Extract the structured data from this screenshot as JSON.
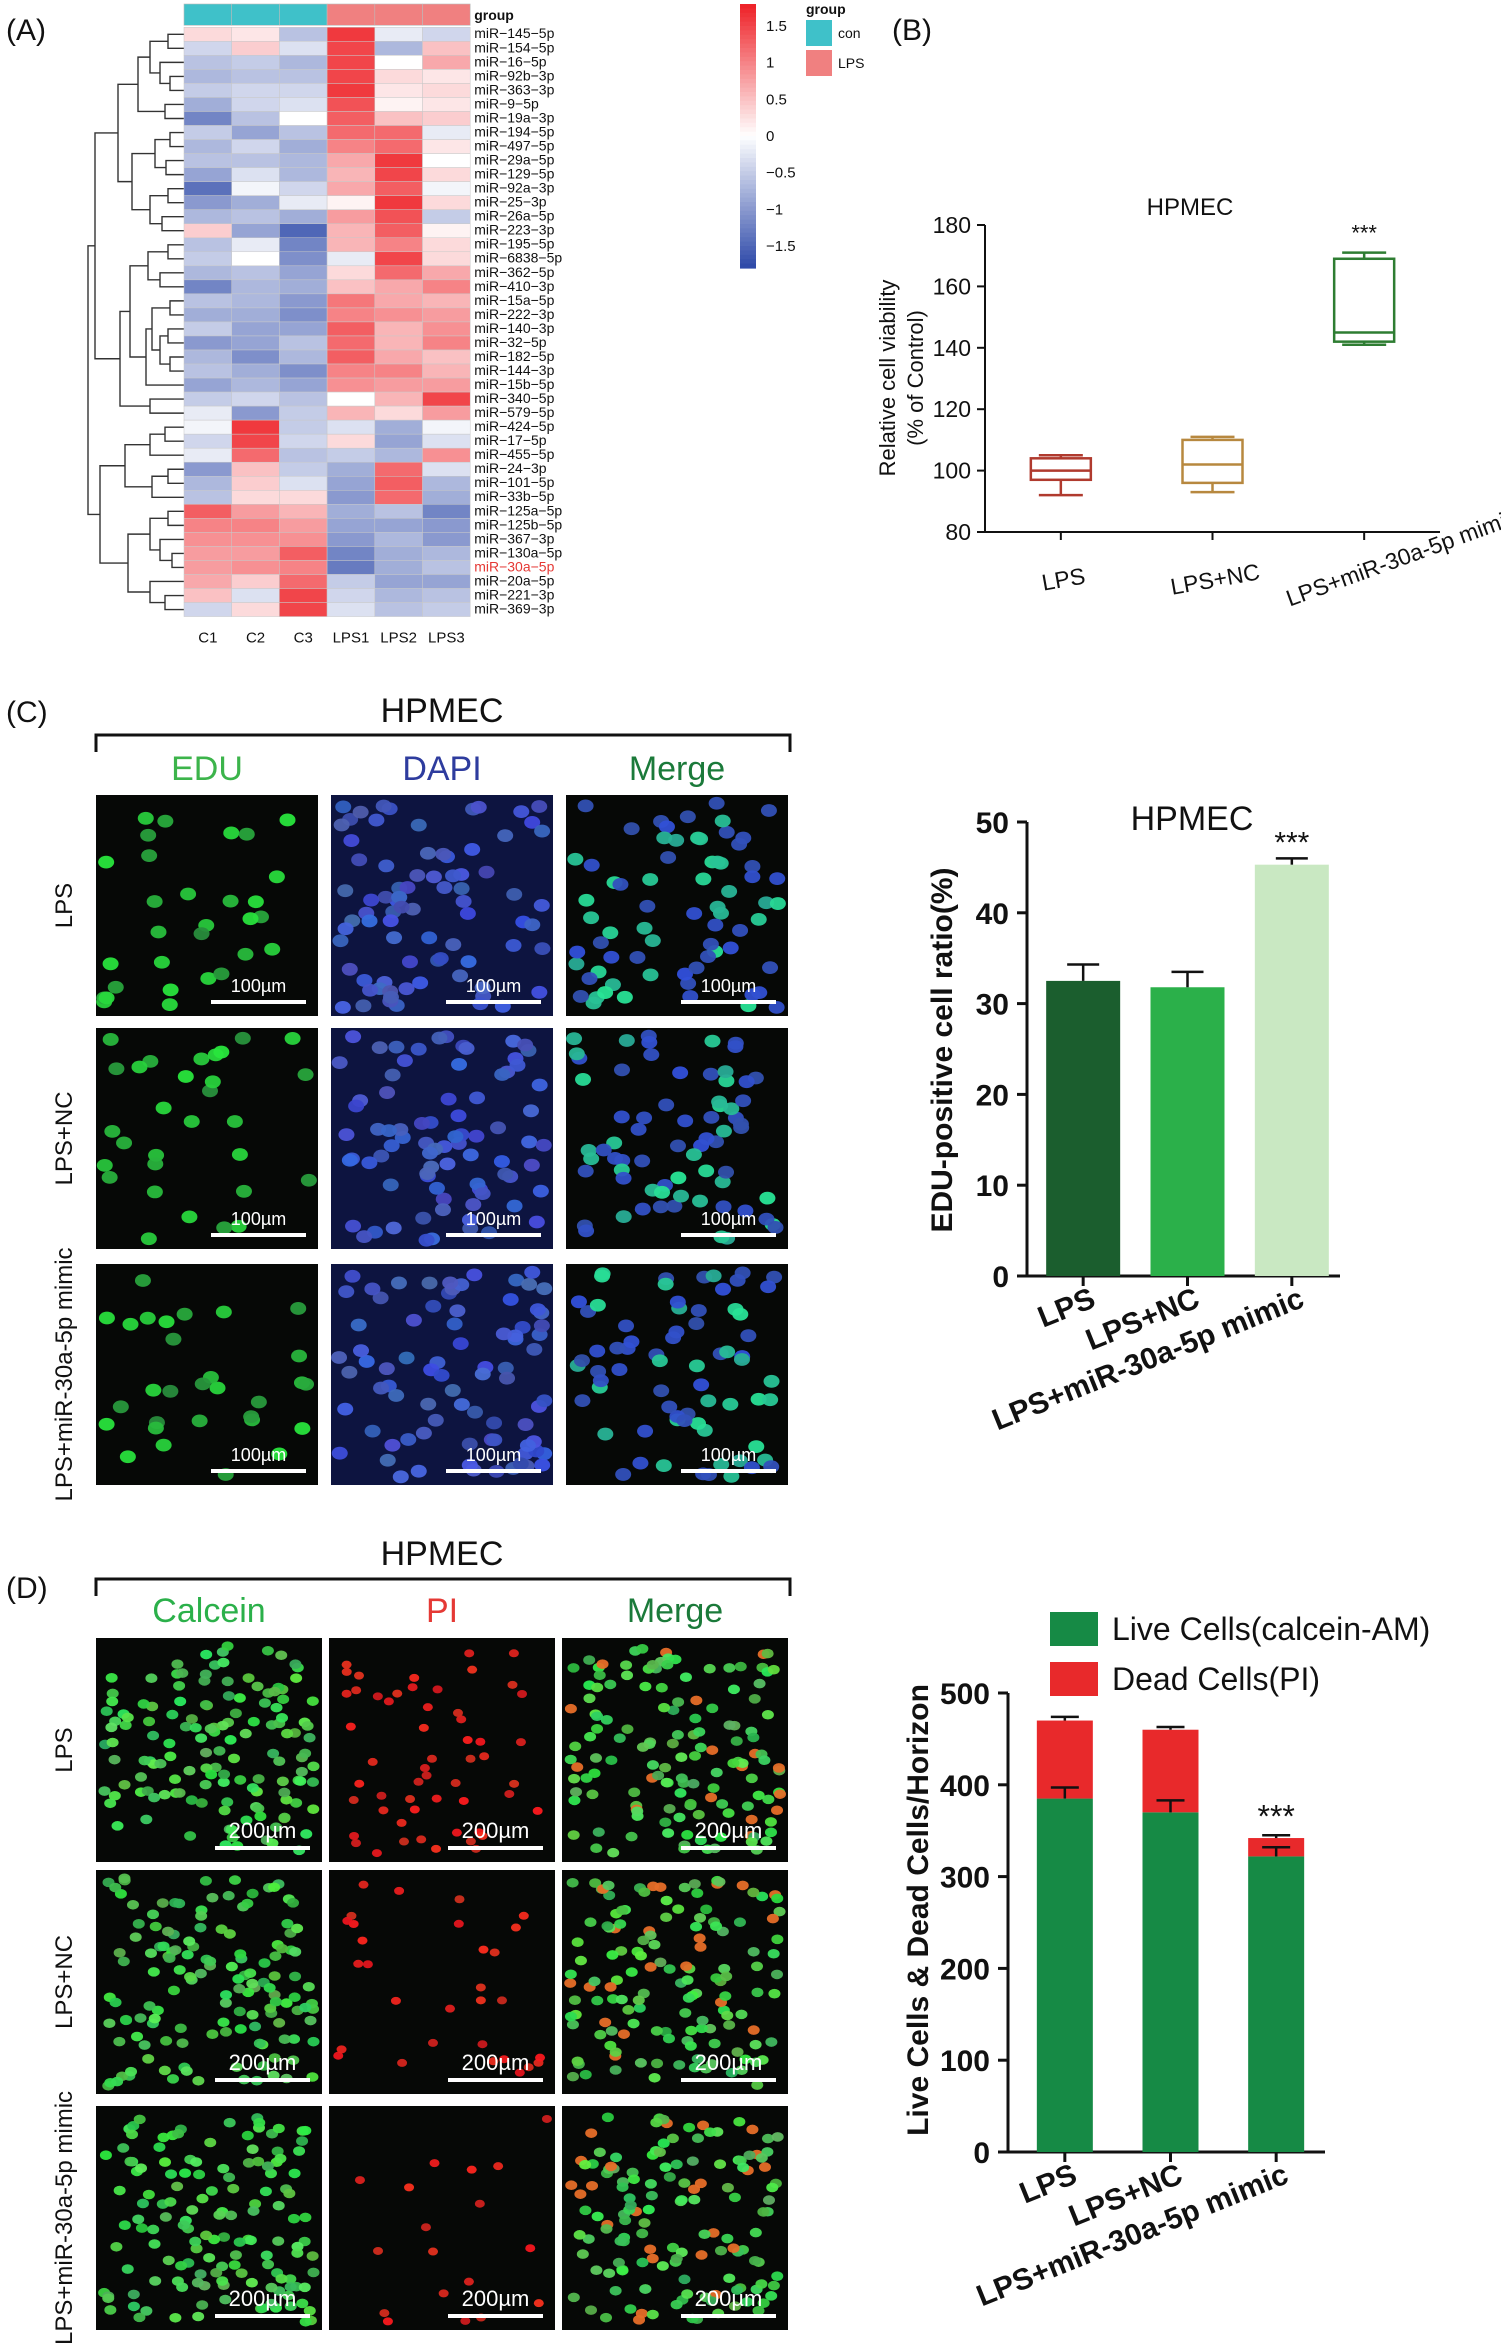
{
  "panels": {
    "A": {
      "letter": "(A)",
      "heatmap": {
        "columns": [
          "C1",
          "C2",
          "C3",
          "LPS1",
          "LPS2",
          "LPS3"
        ],
        "groups": [
          "con",
          "con",
          "con",
          "LPS",
          "LPS",
          "LPS"
        ],
        "legend_title": "group",
        "legend_items": [
          {
            "label": "con",
            "color": "#3fc1c9"
          },
          {
            "label": "LPS",
            "color": "#f08080"
          }
        ],
        "scale_ticks": [
          "1.5",
          "1",
          "0.5",
          "0",
          "−0.5",
          "−1",
          "−1.5"
        ],
        "scale_range": [
          -1.8,
          1.8
        ],
        "highlight_row": "miR−30a−5p",
        "highlight_color": "#e53935",
        "rows": [
          {
            "label": "miR−145−5p",
            "values": [
              0.3,
              0.2,
              -0.6,
              1.6,
              -0.2,
              -0.4
            ]
          },
          {
            "label": "miR−154−5p",
            "values": [
              -0.4,
              0.4,
              -0.3,
              1.5,
              -0.7,
              0.5
            ]
          },
          {
            "label": "miR−16−5p",
            "values": [
              -0.6,
              -0.5,
              -0.7,
              1.5,
              0.0,
              0.7
            ]
          },
          {
            "label": "miR−92b−3p",
            "values": [
              -0.7,
              -0.6,
              -0.6,
              1.5,
              0.3,
              0.2
            ]
          },
          {
            "label": "miR−363−3p",
            "values": [
              -0.5,
              -0.4,
              -0.4,
              1.6,
              0.2,
              0.3
            ]
          },
          {
            "label": "miR−9−5p",
            "values": [
              -0.8,
              -0.4,
              -0.3,
              1.4,
              0.1,
              0.2
            ]
          },
          {
            "label": "miR−19a−3p",
            "values": [
              -1.2,
              -0.6,
              0.0,
              1.3,
              0.5,
              0.4
            ]
          },
          {
            "label": "miR−194−5p",
            "values": [
              -0.5,
              -0.9,
              -0.6,
              1.2,
              1.2,
              -0.2
            ]
          },
          {
            "label": "miR−497−5p",
            "values": [
              -0.7,
              -0.4,
              -0.8,
              1.0,
              1.2,
              0.2
            ]
          },
          {
            "label": "miR−29a−5p",
            "values": [
              -0.6,
              -0.6,
              -0.7,
              0.7,
              1.6,
              0.0
            ]
          },
          {
            "label": "miR−129−5p",
            "values": [
              -0.9,
              -0.3,
              -0.7,
              0.6,
              1.5,
              0.3
            ]
          },
          {
            "label": "miR−92a−3p",
            "values": [
              -1.4,
              -0.1,
              -0.4,
              0.7,
              1.3,
              -0.1
            ]
          },
          {
            "label": "miR−25−3p",
            "values": [
              -1.0,
              -0.8,
              -0.2,
              0.1,
              1.6,
              0.3
            ]
          },
          {
            "label": "miR−26a−5p",
            "values": [
              -0.7,
              -0.6,
              -0.8,
              0.8,
              1.4,
              -0.5
            ]
          },
          {
            "label": "miR−223−3p",
            "values": [
              0.4,
              -0.9,
              -1.5,
              0.6,
              1.3,
              0.1
            ]
          },
          {
            "label": "miR−195−5p",
            "values": [
              -0.6,
              -0.2,
              -1.2,
              0.6,
              1.0,
              0.3
            ]
          },
          {
            "label": "miR−6838−5p",
            "values": [
              -0.5,
              0.0,
              -1.1,
              -0.2,
              1.5,
              0.3
            ]
          },
          {
            "label": "miR−362−5p",
            "values": [
              -0.7,
              -0.6,
              -0.9,
              0.3,
              1.2,
              0.7
            ]
          },
          {
            "label": "miR−410−3p",
            "values": [
              -1.2,
              -0.7,
              -0.8,
              0.5,
              0.7,
              1.0
            ]
          },
          {
            "label": "miR−15a−5p",
            "values": [
              -0.6,
              -0.7,
              -1.0,
              1.1,
              0.7,
              0.6
            ]
          },
          {
            "label": "miR−222−3p",
            "values": [
              -0.8,
              -0.8,
              -1.1,
              1.0,
              0.9,
              0.8
            ]
          },
          {
            "label": "miR−140−3p",
            "values": [
              -0.5,
              -0.9,
              -0.9,
              1.3,
              0.6,
              0.9
            ]
          },
          {
            "label": "miR−32−5p",
            "values": [
              -1.0,
              -0.9,
              -0.6,
              1.2,
              0.6,
              1.0
            ]
          },
          {
            "label": "miR−182−5p",
            "values": [
              -0.7,
              -1.1,
              -0.7,
              1.3,
              0.7,
              0.5
            ]
          },
          {
            "label": "miR−144−3p",
            "values": [
              -0.6,
              -0.8,
              -1.1,
              1.0,
              1.0,
              0.6
            ]
          },
          {
            "label": "miR−15b−5p",
            "values": [
              -0.9,
              -0.7,
              -0.9,
              0.9,
              0.8,
              0.8
            ]
          },
          {
            "label": "miR−340−5p",
            "values": [
              -0.5,
              -0.4,
              -0.6,
              0.0,
              0.6,
              1.5
            ]
          },
          {
            "label": "miR−579−5p",
            "values": [
              -0.2,
              -1.0,
              -0.5,
              0.6,
              0.3,
              0.8
            ]
          },
          {
            "label": "miR−424−5p",
            "values": [
              -0.1,
              1.6,
              -0.5,
              -0.3,
              -0.8,
              -0.1
            ]
          },
          {
            "label": "miR−17−5p",
            "values": [
              -0.4,
              1.5,
              -0.4,
              0.3,
              -0.9,
              -0.3
            ]
          },
          {
            "label": "miR−455−5p",
            "values": [
              -0.2,
              1.2,
              -0.6,
              -0.5,
              -0.7,
              0.9
            ]
          },
          {
            "label": "miR−24−3p",
            "values": [
              -1.0,
              0.5,
              -0.5,
              -0.8,
              1.2,
              -0.3
            ]
          },
          {
            "label": "miR−101−5p",
            "values": [
              -0.7,
              0.4,
              -0.3,
              -0.9,
              1.3,
              -0.7
            ]
          },
          {
            "label": "miR−33b−5p",
            "values": [
              -0.6,
              0.3,
              0.3,
              -1.0,
              1.2,
              -0.8
            ]
          },
          {
            "label": "miR−125a−5p",
            "values": [
              1.3,
              0.8,
              0.6,
              -0.8,
              -0.6,
              -1.2
            ]
          },
          {
            "label": "miR−125b−5p",
            "values": [
              1.0,
              1.0,
              0.8,
              -0.9,
              -0.9,
              -1.0
            ]
          },
          {
            "label": "miR−367−3p",
            "values": [
              0.9,
              0.9,
              0.9,
              -1.0,
              -0.7,
              -1.0
            ]
          },
          {
            "label": "miR−130a−5p",
            "values": [
              0.8,
              0.8,
              1.3,
              -1.2,
              -0.8,
              -0.7
            ]
          },
          {
            "label": "miR−30a−5p",
            "values": [
              0.8,
              0.9,
              1.0,
              -1.3,
              -0.8,
              -0.6
            ]
          },
          {
            "label": "miR−20a−5p",
            "values": [
              0.7,
              0.4,
              1.2,
              -0.5,
              -0.9,
              -0.9
            ]
          },
          {
            "label": "miR−221−3p",
            "values": [
              0.5,
              -0.3,
              1.5,
              -0.4,
              -0.7,
              -0.6
            ]
          },
          {
            "label": "miR−369−3p",
            "values": [
              -0.4,
              0.3,
              1.5,
              -0.3,
              -0.6,
              -0.5
            ]
          }
        ]
      }
    },
    "B": {
      "letter": "(B)",
      "title": "HPMEC",
      "ylabel_line1": "Relative cell viability",
      "ylabel_line2": "(% of Control)",
      "ylim": [
        80,
        180
      ],
      "yticks": [
        "80",
        "100",
        "120",
        "140",
        "160",
        "180"
      ],
      "categories": [
        "LPS",
        "LPS+NC",
        "LPS+miR-30a-5p mimic"
      ],
      "colors": [
        "#b03a2e",
        "#b7883f",
        "#2e7d32"
      ],
      "boxes": [
        {
          "min": 92,
          "q1": 97,
          "median": 100,
          "q3": 104,
          "max": 105
        },
        {
          "min": 93,
          "q1": 96,
          "median": 102,
          "q3": 110,
          "max": 111
        },
        {
          "min": 141,
          "q1": 142,
          "median": 145,
          "q3": 169,
          "max": 171
        }
      ],
      "significance": "***"
    },
    "C": {
      "letter": "(C)",
      "group_title": "HPMEC",
      "col_labels": [
        "EDU",
        "DAPI",
        "Merge"
      ],
      "col_colors": [
        "#3cb44b",
        "#2e3c9e",
        "#1b7a3a"
      ],
      "row_labels": [
        "LPS",
        "LPS+NC",
        "LPS+miR-30a-5p mimic"
      ],
      "scale_bar": "100µm",
      "chart": {
        "title": "HPMEC",
        "ylabel": "EDU-positive cell ratio(%)",
        "ylim": [
          0,
          50
        ],
        "yticks": [
          "0",
          "10",
          "20",
          "30",
          "40",
          "50"
        ],
        "categories": [
          "LPS",
          "LPS+NC",
          "LPS+miR-30a-5p mimic"
        ],
        "values": [
          32.5,
          31.8,
          45.3
        ],
        "errors": [
          1.8,
          1.7,
          0.7
        ],
        "colors": [
          "#1b5e2e",
          "#2bb04a",
          "#c9e8c2"
        ],
        "significance": "***"
      }
    },
    "D": {
      "letter": "(D)",
      "group_title": "HPMEC",
      "col_labels": [
        "Calcein",
        "PI",
        "Merge"
      ],
      "col_colors": [
        "#2bb04a",
        "#e53935",
        "#1b7a3a"
      ],
      "row_labels": [
        "LPS",
        "LPS+NC",
        "LPS+miR-30a-5p mimic"
      ],
      "scale_bar": "200µm",
      "chart": {
        "ylabel": "Live Cells & Dead Cells/Horizon",
        "ylim": [
          0,
          500
        ],
        "yticks": [
          "0",
          "100",
          "200",
          "300",
          "400",
          "500"
        ],
        "categories": [
          "LPS",
          "LPS+NC",
          "LPS+miR-30a-5p mimic"
        ],
        "series": [
          {
            "name": "Live Cells(calcein-AM)",
            "color": "#168a45",
            "values": [
              385,
              370,
              322
            ],
            "errors": [
              12,
              13,
              10
            ]
          },
          {
            "name": "Dead Cells(PI)",
            "color": "#e8292b",
            "values": [
              85,
              90,
              20
            ],
            "errors": [
              4,
              3,
              3
            ]
          }
        ],
        "significance": "***"
      }
    }
  }
}
